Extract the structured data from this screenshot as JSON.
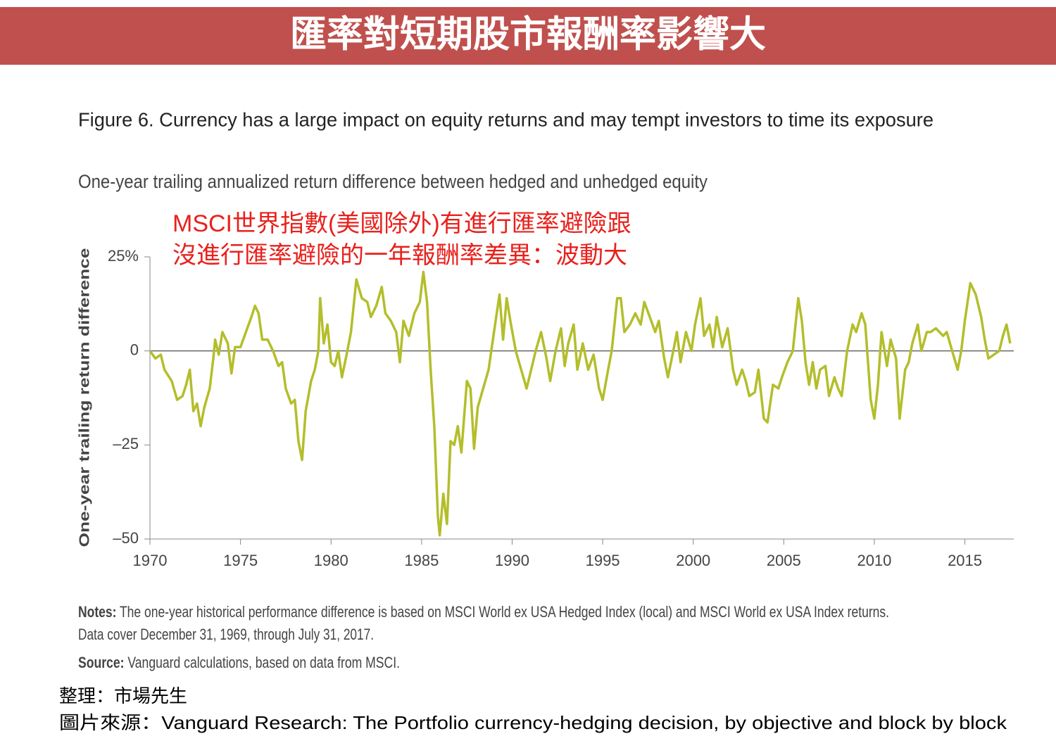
{
  "header": {
    "title": "匯率對短期股市報酬率影響大"
  },
  "chart_data": {
    "type": "line",
    "title": "Figure 6. Currency has a large impact on equity returns and may tempt investors to time its exposure",
    "subtitle": "One-year trailing annualized return difference between hedged and unhedged equity",
    "annotation": [
      "MSCI世界指數(美國除外)有進行匯率避險跟",
      "沒進行匯率避險的一年報酬率差異：波動大"
    ],
    "y_label": "One-year trailing return difference",
    "color": "#b3be2b",
    "xlim": [
      1970,
      2017.7
    ],
    "xticks": [
      1970,
      1975,
      1980,
      1985,
      1990,
      1995,
      2000,
      2005,
      2010,
      2015
    ],
    "ylim": [
      -50,
      25
    ],
    "yticks": [
      {
        "value": 25,
        "label": "25%"
      },
      0,
      {
        "value": -25,
        "label": "–25"
      },
      {
        "value": -50,
        "label": "–50"
      }
    ],
    "x": [
      1970.0,
      1970.3,
      1970.6,
      1970.8,
      1971.2,
      1971.5,
      1971.8,
      1972.0,
      1972.2,
      1972.4,
      1972.6,
      1972.8,
      1973.0,
      1973.3,
      1973.5,
      1973.6,
      1973.8,
      1974.0,
      1974.3,
      1974.5,
      1974.7,
      1975.0,
      1975.3,
      1975.6,
      1975.8,
      1976.0,
      1976.2,
      1976.5,
      1976.8,
      1977.1,
      1977.3,
      1977.5,
      1977.8,
      1978.0,
      1978.2,
      1978.4,
      1978.6,
      1978.9,
      1979.1,
      1979.3,
      1979.4,
      1979.6,
      1979.8,
      1980.0,
      1980.2,
      1980.4,
      1980.6,
      1980.9,
      1981.1,
      1981.4,
      1981.7,
      1982.0,
      1982.2,
      1982.5,
      1982.8,
      1983.0,
      1983.3,
      1983.6,
      1983.8,
      1984.0,
      1984.3,
      1984.6,
      1984.9,
      1985.1,
      1985.3,
      1985.5,
      1985.7,
      1985.9,
      1986.0,
      1986.2,
      1986.4,
      1986.6,
      1986.8,
      1987.0,
      1987.2,
      1987.5,
      1987.7,
      1987.9,
      1988.1,
      1988.4,
      1988.7,
      1989.0,
      1989.3,
      1989.5,
      1989.7,
      1989.9,
      1990.2,
      1990.5,
      1990.8,
      1991.0,
      1991.3,
      1991.6,
      1991.9,
      1992.1,
      1992.4,
      1992.7,
      1992.9,
      1993.1,
      1993.4,
      1993.6,
      1993.9,
      1994.2,
      1994.5,
      1994.8,
      1995.0,
      1995.3,
      1995.5,
      1995.8,
      1996.0,
      1996.2,
      1996.5,
      1996.8,
      1997.1,
      1997.3,
      1997.6,
      1997.9,
      1998.1,
      1998.4,
      1998.6,
      1998.9,
      1999.1,
      1999.3,
      1999.6,
      1999.9,
      2000.1,
      2000.4,
      2000.6,
      2000.9,
      2001.1,
      2001.3,
      2001.6,
      2001.9,
      2002.2,
      2002.4,
      2002.7,
      2002.9,
      2003.1,
      2003.4,
      2003.6,
      2003.9,
      2004.1,
      2004.4,
      2004.7,
      2004.9,
      2005.2,
      2005.5,
      2005.8,
      2006.0,
      2006.2,
      2006.4,
      2006.6,
      2006.8,
      2007.0,
      2007.3,
      2007.5,
      2007.8,
      2008.0,
      2008.2,
      2008.5,
      2008.8,
      2009.0,
      2009.3,
      2009.5,
      2009.8,
      2010.0,
      2010.2,
      2010.4,
      2010.7,
      2010.9,
      2011.2,
      2011.4,
      2011.7,
      2011.9,
      2012.1,
      2012.4,
      2012.6,
      2012.9,
      2013.1,
      2013.4,
      2013.8,
      2014.0,
      2014.3,
      2014.6,
      2014.8,
      2015.0,
      2015.3,
      2015.6,
      2015.9,
      2016.1,
      2016.3,
      2016.6,
      2016.9,
      2017.1,
      2017.3,
      2017.5
    ],
    "values": [
      0,
      -2,
      -1,
      -5,
      -8,
      -13,
      -12,
      -9,
      -5,
      -16,
      -14,
      -20,
      -15,
      -10,
      -2,
      3,
      -1,
      5,
      2,
      -6,
      1,
      1,
      5,
      9,
      12,
      10,
      3,
      3,
      0,
      -4,
      -3,
      -10,
      -14,
      -13,
      -24,
      -29,
      -16,
      -8,
      -5,
      0,
      14,
      2,
      7,
      -3,
      -4,
      0,
      -7,
      0,
      5,
      19,
      14,
      13,
      9,
      12,
      17,
      10,
      8,
      5,
      -3,
      8,
      4,
      10,
      13,
      21,
      13,
      -5,
      -20,
      -44,
      -49,
      -38,
      -46,
      -24,
      -25,
      -20,
      -27,
      -8,
      -10,
      -26,
      -15,
      -10,
      -5,
      5,
      15,
      3,
      14,
      8,
      0,
      -5,
      -10,
      -6,
      0,
      5,
      -2,
      -8,
      0,
      6,
      -4,
      2,
      7,
      -5,
      2,
      -5,
      -1,
      -10,
      -13,
      -5,
      0,
      14,
      14,
      5,
      7,
      10,
      7,
      13,
      9,
      5,
      8,
      -2,
      -7,
      0,
      5,
      -3,
      5,
      0,
      7,
      14,
      4,
      7,
      1,
      9,
      1,
      6,
      -5,
      -9,
      -5,
      -8,
      -12,
      -11,
      -5,
      -18,
      -19,
      -9,
      -10,
      -7,
      -3,
      0,
      14,
      8,
      -3,
      -9,
      -3,
      -10,
      -5,
      -4,
      -12,
      -7,
      -10,
      -12,
      0,
      7,
      5,
      10,
      7,
      -13,
      -18,
      -9,
      5,
      -4,
      3,
      -2,
      -18,
      -5,
      -3,
      2,
      7,
      0,
      5,
      5,
      6,
      4,
      5,
      0,
      -5,
      0,
      8,
      18,
      15,
      9,
      3,
      -2,
      -1,
      0,
      4,
      7,
      2
    ]
  },
  "notes": {
    "label": "Notes:",
    "text": " The one-year historical performance difference is based on MSCI World ex USA Hedged Index (local) and MSCI World ex USA Index returns.",
    "text2": "Data cover December 31, 1969, through July 31, 2017."
  },
  "source": {
    "label": "Source:",
    "text": " Vanguard calculations, based on data from MSCI."
  },
  "footer": [
    "整理：市場先生",
    "圖片來源：Vanguard Research: The Portfolio currency-hedging decision, by objective and block by block"
  ]
}
